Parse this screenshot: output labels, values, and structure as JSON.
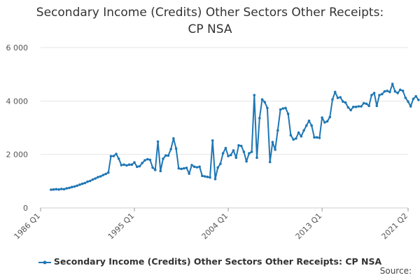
{
  "title_line1": "Secondary Income (Credits) Other Sectors Other Receipts:",
  "title_line2": "CP NSA",
  "source_label": "Source:",
  "chart_data": {
    "type": "line",
    "title": "Secondary Income (Credits) Other Sectors Other Receipts: CP NSA",
    "xlabel": "",
    "ylabel": "",
    "x_ticks": [
      "1986 Q1",
      "1995 Q1",
      "2004 Q1",
      "2013 Q1",
      "2021 Q2"
    ],
    "y_ticks": [
      "0",
      "2 000",
      "4 000",
      "6 000"
    ],
    "y_tick_values": [
      0,
      2000,
      4000,
      6000
    ],
    "ylim": [
      0,
      6000
    ],
    "x_range": [
      "1986 Q1",
      "2021 Q2"
    ],
    "grid": "horizontal",
    "legend_position": "bottom",
    "color": "#1f77b4",
    "series": [
      {
        "name": "Secondary Income (Credits) Other Sectors Other Receipts: CP NSA",
        "start": "1987 Q1",
        "frequency": "quarterly",
        "values": [
          680,
          690,
          700,
          690,
          710,
          700,
          730,
          750,
          780,
          800,
          830,
          870,
          900,
          930,
          980,
          1010,
          1060,
          1100,
          1150,
          1180,
          1230,
          1270,
          1320,
          1940,
          1940,
          2020,
          1840,
          1600,
          1620,
          1590,
          1620,
          1620,
          1700,
          1540,
          1560,
          1680,
          1780,
          1820,
          1800,
          1510,
          1420,
          2480,
          1380,
          1840,
          1960,
          1960,
          2200,
          2600,
          2220,
          1480,
          1460,
          1480,
          1500,
          1280,
          1600,
          1540,
          1520,
          1540,
          1200,
          1180,
          1160,
          1140,
          2520,
          1080,
          1510,
          1650,
          2040,
          2240,
          1940,
          1980,
          2150,
          1880,
          2340,
          2320,
          2100,
          1740,
          2040,
          2100,
          4220,
          1880,
          3360,
          4060,
          3960,
          3740,
          1720,
          2460,
          2180,
          2900,
          3680,
          3720,
          3740,
          3520,
          2720,
          2560,
          2600,
          2820,
          2680,
          2900,
          3080,
          3260,
          3080,
          2640,
          2640,
          2620,
          3380,
          3200,
          3240,
          3400,
          4060,
          4340,
          4120,
          4140,
          3980,
          3940,
          3760,
          3660,
          3780,
          3780,
          3800,
          3800,
          3920,
          3900,
          3820,
          4220,
          4300,
          3820,
          4220,
          4260,
          4360,
          4380,
          4340,
          4640,
          4360,
          4300,
          4420,
          4380,
          4120,
          3980,
          3800,
          4080,
          4180,
          4040
        ]
      }
    ]
  }
}
